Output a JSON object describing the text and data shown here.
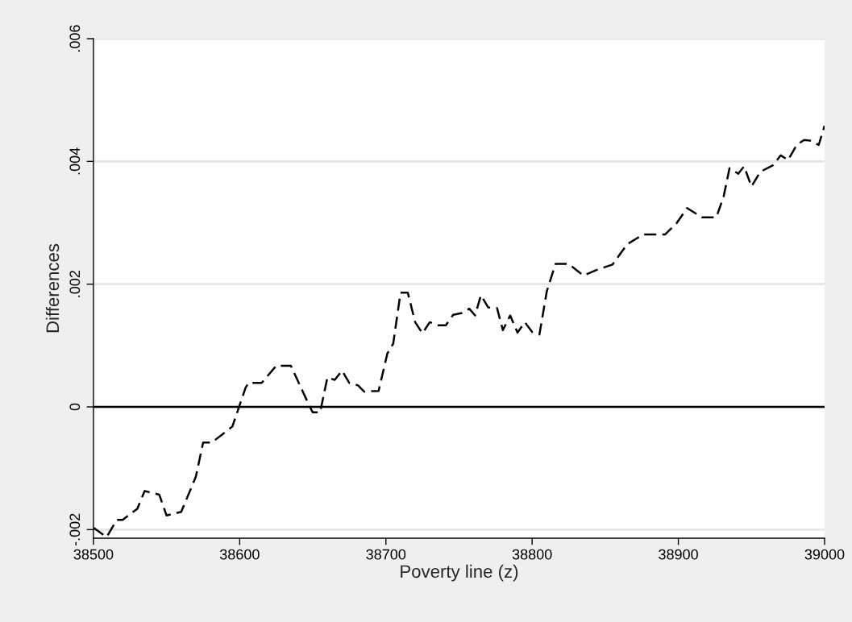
{
  "chart_data": {
    "type": "line",
    "xlabel": "Poverty line (z)",
    "ylabel": "Differences",
    "x": [
      38500,
      38509,
      38516,
      38520,
      38530,
      38535,
      38545,
      38550,
      38560,
      38570,
      38575,
      38581,
      38595,
      38604,
      38606,
      38615,
      38625,
      38635,
      38648,
      38650,
      38655,
      38660,
      38665,
      38670,
      38675,
      38681,
      38685,
      38695,
      38701,
      38705,
      38710,
      38715,
      38720,
      38725,
      38730,
      38736,
      38741,
      38746,
      38752,
      38757,
      38761,
      38765,
      38770,
      38776,
      38780,
      38785,
      38790,
      38795,
      38800,
      38805,
      38810,
      38816,
      38825,
      38835,
      38844,
      38855,
      38865,
      38876,
      38891,
      38899,
      38906,
      38916,
      38926,
      38931,
      38935,
      38941,
      38945,
      38950,
      38956,
      38965,
      38970,
      38975,
      38981,
      38986,
      38990,
      38996,
      39000
    ],
    "series": [
      {
        "color": "#000000",
        "line_style": "dashed",
        "values": [
          -0.00197,
          -0.00212,
          -0.00184,
          -0.00184,
          -0.00166,
          -0.00137,
          -0.00143,
          -0.00177,
          -0.00171,
          -0.00114,
          -0.00058,
          -0.00058,
          -0.00032,
          0.00031,
          0.00039,
          0.00039,
          0.00067,
          0.00067,
          0.0,
          -9e-05,
          -9e-05,
          0.00048,
          0.00044,
          0.00059,
          0.00039,
          0.00035,
          0.00025,
          0.00026,
          0.00087,
          0.00103,
          0.00186,
          0.00186,
          0.00138,
          0.0012,
          0.00138,
          0.00133,
          0.00133,
          0.0015,
          0.00153,
          0.0016,
          0.00149,
          0.00182,
          0.00162,
          0.00161,
          0.00125,
          0.00149,
          0.00121,
          0.00138,
          0.00122,
          0.00118,
          0.00188,
          0.00233,
          0.00233,
          0.00214,
          0.00223,
          0.00232,
          0.00265,
          0.00281,
          0.00281,
          0.003,
          0.00324,
          0.00309,
          0.00309,
          0.00343,
          0.00389,
          0.0038,
          0.00392,
          0.00359,
          0.00383,
          0.00394,
          0.0041,
          0.00402,
          0.00427,
          0.00435,
          0.00434,
          0.00427,
          0.00458
        ]
      }
    ],
    "xlim": [
      38500,
      39000
    ],
    "xticks": [
      38500,
      38600,
      38700,
      38800,
      38900,
      39000
    ],
    "ylim": [
      -0.00214,
      0.006
    ],
    "yticks": [
      {
        "value": -0.002,
        "label": "-.002"
      },
      {
        "value": 0,
        "label": "0"
      },
      {
        "value": 0.002,
        "label": ".002"
      },
      {
        "value": 0.004,
        "label": ".004"
      },
      {
        "value": 0.006,
        "label": ".006"
      }
    ],
    "grid": "y",
    "ref_lines": [
      {
        "axis": "y",
        "value": 0,
        "color": "#000000",
        "line_style": "solid"
      }
    ]
  }
}
